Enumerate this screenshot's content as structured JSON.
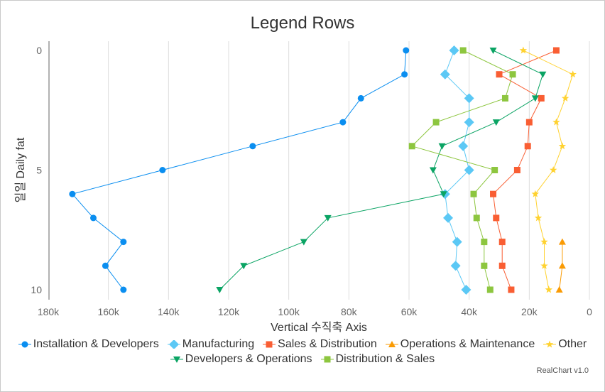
{
  "chart_data": {
    "type": "line",
    "title": "Legend Rows",
    "xlabel": "Vertical 수직축 Axis",
    "ylabel": "일일 Daily fat",
    "xlim": [
      0,
      180000
    ],
    "x_reversed": true,
    "ylim": [
      0,
      10
    ],
    "y_reversed": true,
    "x_ticks": [
      180000,
      160000,
      140000,
      120000,
      100000,
      80000,
      60000,
      40000,
      20000,
      0
    ],
    "x_tick_labels": [
      "180k",
      "160k",
      "140k",
      "120k",
      "100k",
      "80k",
      "60k",
      "40k",
      "20k",
      "0"
    ],
    "y_ticks": [
      0,
      5,
      10
    ],
    "y_tick_labels": [
      "0",
      "5",
      "10"
    ],
    "grid": "vertical",
    "series": [
      {
        "name": "Installation & Developers",
        "color": "#0a8ef0",
        "marker": "circle",
        "points": [
          [
            0,
            61000
          ],
          [
            1,
            61500
          ],
          [
            2,
            76000
          ],
          [
            3,
            82000
          ],
          [
            4,
            112000
          ],
          [
            5,
            142000
          ],
          [
            6,
            172000
          ],
          [
            7,
            165000
          ],
          [
            8,
            155000
          ],
          [
            9,
            161000
          ],
          [
            10,
            155000
          ]
        ]
      },
      {
        "name": "Manufacturing",
        "color": "#5bc8f5",
        "marker": "diamond",
        "points": [
          [
            0,
            45000
          ],
          [
            1,
            48000
          ],
          [
            2,
            40000
          ],
          [
            3,
            40000
          ],
          [
            4,
            42000
          ],
          [
            5,
            40000
          ],
          [
            6,
            48000
          ],
          [
            7,
            47000
          ],
          [
            8,
            44000
          ],
          [
            9,
            44500
          ],
          [
            10,
            41000
          ]
        ]
      },
      {
        "name": "Sales & Distribution",
        "color": "#f95e33",
        "marker": "square",
        "points": [
          [
            0,
            11000
          ],
          [
            1,
            30000
          ],
          [
            2,
            16000
          ],
          [
            3,
            20000
          ],
          [
            4,
            20500
          ],
          [
            5,
            24000
          ],
          [
            6,
            32000
          ],
          [
            7,
            31000
          ],
          [
            8,
            29000
          ],
          [
            9,
            29000
          ],
          [
            10,
            26000
          ]
        ]
      },
      {
        "name": "Operations & Maintenance",
        "color": "#fa9b04",
        "marker": "triangle",
        "points": [
          [
            8,
            9000
          ],
          [
            9,
            9000
          ],
          [
            10,
            10000
          ]
        ]
      },
      {
        "name": "Other",
        "color": "#ffd230",
        "marker": "star",
        "points": [
          [
            0,
            22000
          ],
          [
            1,
            5500
          ],
          [
            2,
            8000
          ],
          [
            3,
            11000
          ],
          [
            4,
            9000
          ],
          [
            5,
            12000
          ],
          [
            6,
            18000
          ],
          [
            7,
            17000
          ],
          [
            8,
            15000
          ],
          [
            9,
            15000
          ],
          [
            10,
            13500
          ]
        ]
      },
      {
        "name": "Developers & Operations",
        "color": "#0ba464",
        "marker": "triangle-down",
        "points": [
          [
            0,
            32000
          ],
          [
            1,
            15500
          ],
          [
            2,
            18000
          ],
          [
            3,
            31000
          ],
          [
            4,
            49000
          ],
          [
            5,
            52000
          ],
          [
            6,
            48500
          ],
          [
            7,
            87000
          ],
          [
            8,
            95000
          ],
          [
            9,
            115000
          ],
          [
            10,
            123000
          ]
        ]
      },
      {
        "name": "Distribution & Sales",
        "color": "#8dc63f",
        "marker": "square",
        "points": [
          [
            0,
            42000
          ],
          [
            1,
            25500
          ],
          [
            2,
            28000
          ],
          [
            3,
            51000
          ],
          [
            4,
            59000
          ],
          [
            5,
            31500
          ],
          [
            6,
            38500
          ],
          [
            7,
            37500
          ],
          [
            8,
            35000
          ],
          [
            9,
            35000
          ],
          [
            10,
            33000
          ]
        ]
      }
    ]
  },
  "legend": {
    "rows": [
      [
        "Installation & Developers",
        "Manufacturing",
        "Sales & Distribution",
        "Operations & Maintenance",
        "Other"
      ],
      [
        "Developers & Operations",
        "Distribution & Sales"
      ]
    ]
  },
  "credit": "RealChart v1.0"
}
